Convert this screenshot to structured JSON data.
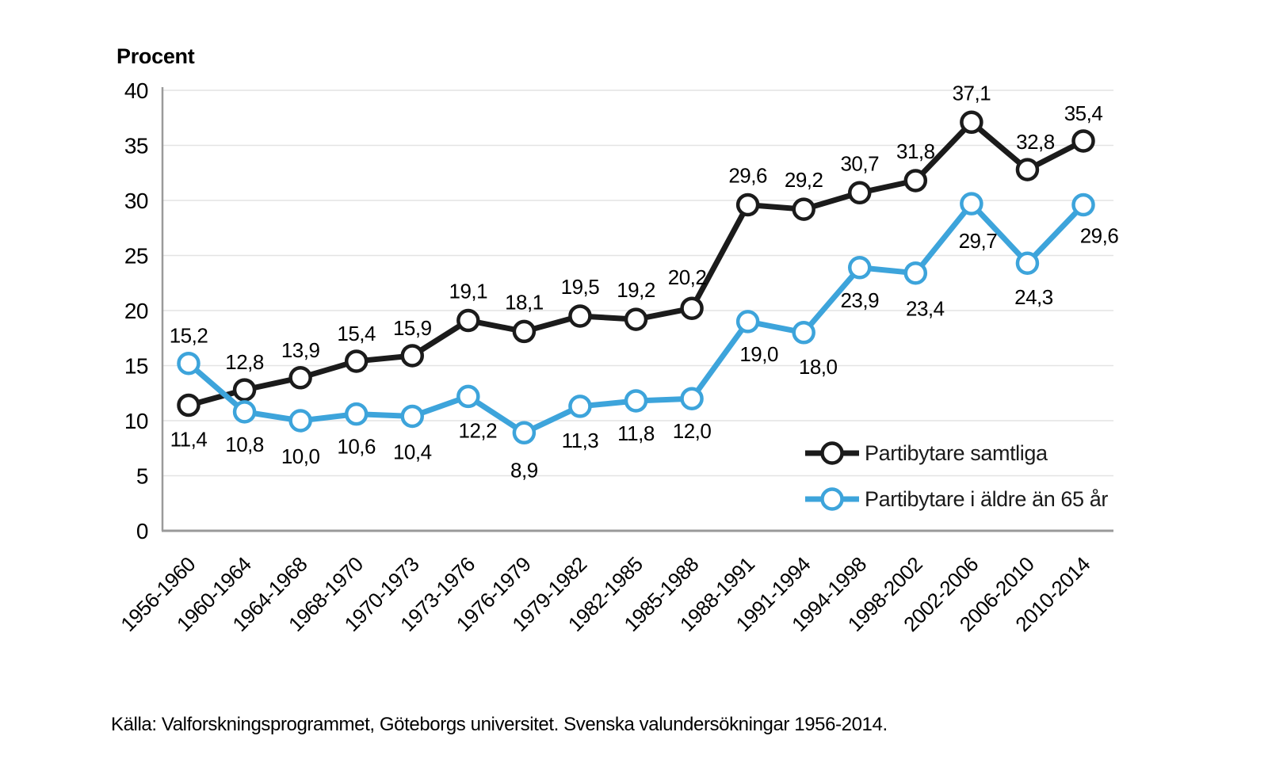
{
  "source": "Källa: Valforskningsprogrammet, Göteborgs universitet. Svenska valundersökningar 1956-2014.",
  "legend": {
    "items": [
      {
        "label": "Partibytare samtliga",
        "color": "#1b1b1b"
      },
      {
        "label": "Partibytare i äldre än 65 år",
        "color": "#3da4db"
      }
    ]
  },
  "chart_data": {
    "type": "line",
    "title": "",
    "ylabel": "Procent",
    "xlabel": "",
    "categories": [
      "1956-1960",
      "1960-1964",
      "1964-1968",
      "1968-1970",
      "1970-1973",
      "1973-1976",
      "1976-1979",
      "1979-1982",
      "1982-1985",
      "1985-1988",
      "1988-1991",
      "1991-1994",
      "1994-1998",
      "1998-2002",
      "2002-2006",
      "2006-2010",
      "2010-2014"
    ],
    "series": [
      {
        "name": "Partibytare samtliga",
        "color": "#1b1b1b",
        "values": [
          11.4,
          12.8,
          13.9,
          15.4,
          15.9,
          19.1,
          18.1,
          19.5,
          19.2,
          20.2,
          29.6,
          29.2,
          30.7,
          31.8,
          37.1,
          32.8,
          35.4
        ],
        "point_labels": [
          "11,4",
          "12,8",
          "13,9",
          "15,4",
          "15,9",
          "19,1",
          "18,1",
          "19,5",
          "19,2",
          "20,2",
          "29,6",
          "29,2",
          "30,7",
          "31,8",
          "37,1",
          "32,8",
          "35,4"
        ],
        "label_offsets": [
          [
            0,
            52
          ],
          [
            0,
            -26
          ],
          [
            0,
            -26
          ],
          [
            0,
            -26
          ],
          [
            0,
            -26
          ],
          [
            0,
            -28
          ],
          [
            0,
            -28
          ],
          [
            0,
            -28
          ],
          [
            0,
            -28
          ],
          [
            -6,
            -30
          ],
          [
            0,
            -28
          ],
          [
            0,
            -28
          ],
          [
            0,
            -28
          ],
          [
            0,
            -28
          ],
          [
            0,
            -28
          ],
          [
            10,
            -26
          ],
          [
            0,
            -26
          ]
        ]
      },
      {
        "name": "Partibytare i äldre än 65 år",
        "color": "#3da4db",
        "values": [
          15.2,
          10.8,
          10.0,
          10.6,
          10.4,
          12.2,
          8.9,
          11.3,
          11.8,
          12.0,
          19.0,
          18.0,
          23.9,
          23.4,
          29.7,
          24.3,
          29.6
        ],
        "point_labels": [
          "15,2",
          "10,8",
          "10,0",
          "10,6",
          "10,4",
          "12,2",
          "8,9",
          "11,3",
          "11,8",
          "12,0",
          "19,0",
          "18,0",
          "23,9",
          "23,4",
          "29,7",
          "24,3",
          "29,6"
        ],
        "label_offsets": [
          [
            0,
            -26
          ],
          [
            0,
            50
          ],
          [
            0,
            54
          ],
          [
            0,
            50
          ],
          [
            0,
            54
          ],
          [
            12,
            52
          ],
          [
            0,
            56
          ],
          [
            0,
            52
          ],
          [
            0,
            50
          ],
          [
            0,
            50
          ],
          [
            14,
            50
          ],
          [
            18,
            52
          ],
          [
            0,
            50
          ],
          [
            12,
            54
          ],
          [
            8,
            56
          ],
          [
            8,
            52
          ],
          [
            20,
            48
          ]
        ]
      }
    ],
    "ylim": [
      0,
      40
    ],
    "yticks": [
      0,
      5,
      10,
      15,
      20,
      25,
      30,
      35,
      40
    ],
    "grid": true,
    "legend_position": "inside-right",
    "decimal_separator": ","
  }
}
